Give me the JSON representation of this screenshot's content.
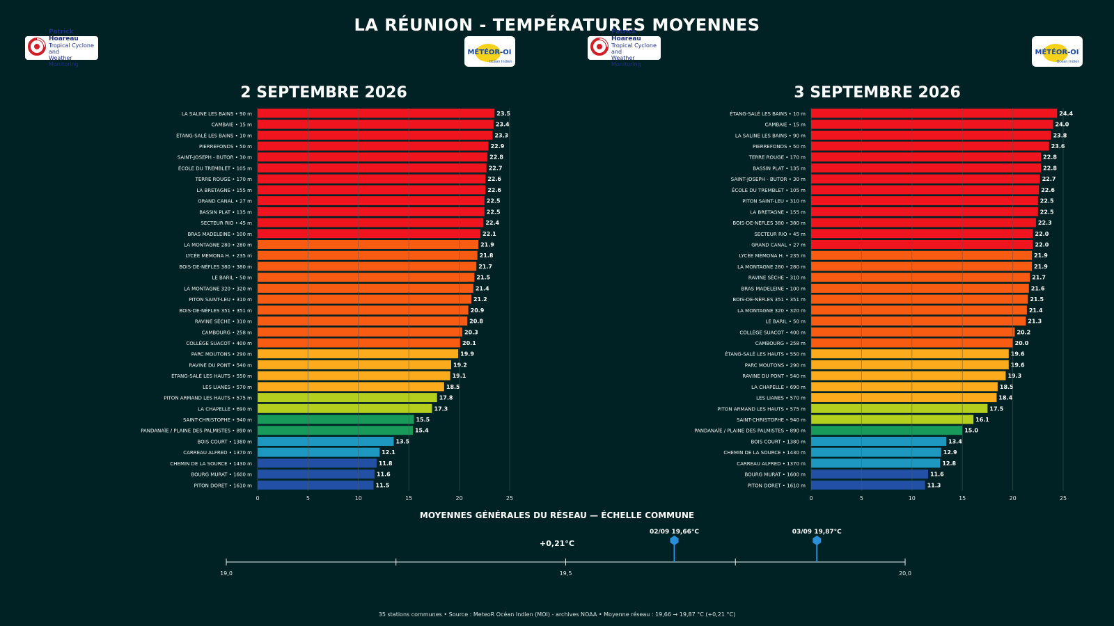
{
  "header": {
    "title": "LA RÉUNION - TEMPÉRATURES MOYENNES",
    "logo_ph_line1": "Patrick Hoareau",
    "logo_ph_line2": "Tropical Cyclone and",
    "logo_ph_line3": "Weather Monitoring",
    "logo_mdi_text": "MÉTÉOR-OI",
    "logo_mdi_sub": "Océan Indien"
  },
  "colors": {
    "background": "#012224",
    "red": "#f0141e",
    "orange": "#f85c12",
    "amber": "#fbab1b",
    "lime": "#b5cf1f",
    "green": "#189a5a",
    "teal": "#1e98c0",
    "blue": "#2250a4",
    "marker": "#2a8fd8"
  },
  "chart_data": [
    {
      "type": "bar",
      "orientation": "horizontal",
      "title": "2 SEPTEMBRE 2026",
      "xlim": [
        0,
        25
      ],
      "xticks": [
        0,
        5,
        10,
        15,
        20,
        25
      ],
      "grid": true,
      "categories": [
        "LA SALINE LES BAINS • 90 m",
        "CAMBAIE • 15 m",
        "ÉTANG-SALÉ LES BAINS • 10 m",
        "PIERREFONDS • 50 m",
        "SAINT-JOSEPH - BUTOR • 30 m",
        "ÉCOLE DU TREMBLET • 105 m",
        "TERRE ROUGE • 170 m",
        "LA BRETAGNE • 155 m",
        "GRAND CANAL • 27 m",
        "BASSIN PLAT • 135 m",
        "SECTEUR RIO • 45 m",
        "BRAS MADELEINE • 100 m",
        "LA MONTAGNE 280 • 280 m",
        "LYCÉE MÉMONA H. • 235 m",
        "BOIS-DE-NÈFLES 380 • 380 m",
        "LE BARIL • 50 m",
        "LA MONTAGNE 320 • 320 m",
        "PITON SAINT-LEU • 310 m",
        "BOIS-DE-NÈFLES 351 • 351 m",
        "RAVINE SÈCHE • 310 m",
        "CAMBOURG • 258 m",
        "COLLÈGE SUACOT • 400 m",
        "PARC MOUTONS • 290 m",
        "RAVINE DU PONT • 540 m",
        "ÉTANG-SALÉ LES HAUTS • 550 m",
        "LES LIANES • 570 m",
        "PITON ARMAND LES HAUTS • 575 m",
        "LA CHAPELLE • 690 m",
        "SAINT-CHRISTOPHE • 940 m",
        "PANDANAÏE / PLAINE DES PALMISTES • 890 m",
        "BOIS COURT • 1380 m",
        "CARREAU ALFRED • 1370 m",
        "CHEMIN DE LA SOURCE • 1430 m",
        "BOURG MURAT • 1600 m",
        "PITON DORET • 1610 m"
      ],
      "values": [
        23.5,
        23.4,
        23.3,
        22.9,
        22.8,
        22.7,
        22.6,
        22.6,
        22.5,
        22.5,
        22.4,
        22.1,
        21.9,
        21.8,
        21.7,
        21.5,
        21.4,
        21.2,
        20.9,
        20.8,
        20.3,
        20.1,
        19.9,
        19.2,
        19.1,
        18.5,
        17.8,
        17.3,
        15.5,
        15.4,
        13.5,
        12.1,
        11.8,
        11.6,
        11.5
      ],
      "value_labels": [
        "23.5",
        "23.4",
        "23.3",
        "22.9",
        "22.8",
        "22.7",
        "22.6",
        "22.6",
        "22.5",
        "22.5",
        "22.4",
        "22.1",
        "21.9",
        "21.8",
        "21.7",
        "21.5",
        "21.4",
        "21.2",
        "20.9",
        "20.8",
        "20.3",
        "20.1",
        "19.9",
        "19.2",
        "19.1",
        "18.5",
        "17.8",
        "17.3",
        "15.5",
        "15.4",
        "13.5",
        "12.1",
        "11.8",
        "11.6",
        "11.5"
      ],
      "bar_colors": [
        "red",
        "red",
        "red",
        "red",
        "red",
        "red",
        "red",
        "red",
        "red",
        "red",
        "red",
        "red",
        "orange",
        "orange",
        "orange",
        "orange",
        "orange",
        "orange",
        "orange",
        "orange",
        "orange",
        "orange",
        "amber",
        "amber",
        "amber",
        "amber",
        "lime",
        "lime",
        "green",
        "green",
        "teal",
        "teal",
        "blue",
        "blue",
        "blue"
      ]
    },
    {
      "type": "bar",
      "orientation": "horizontal",
      "title": "3 SEPTEMBRE 2026",
      "xlim": [
        0,
        25
      ],
      "xticks": [
        0,
        5,
        10,
        15,
        20,
        25
      ],
      "grid": true,
      "categories": [
        "ÉTANG-SALÉ LES BAINS • 10 m",
        "CAMBAIE • 15 m",
        "LA SALINE LES BAINS • 90 m",
        "PIERREFONDS • 50 m",
        "TERRE ROUGE • 170 m",
        "BASSIN PLAT • 135 m",
        "SAINT-JOSEPH - BUTOR • 30 m",
        "ÉCOLE DU TREMBLET • 105 m",
        "PITON SAINT-LEU • 310 m",
        "LA BRETAGNE • 155 m",
        "BOIS-DE-NÈFLES 380 • 380 m",
        "SECTEUR RIO • 45 m",
        "GRAND CANAL • 27 m",
        "LYCÉE MÉMONA H. • 235 m",
        "LA MONTAGNE 280 • 280 m",
        "RAVINE SÈCHE • 310 m",
        "BRAS MADELEINE • 100 m",
        "BOIS-DE-NÈFLES 351 • 351 m",
        "LA MONTAGNE 320 • 320 m",
        "LE BARIL • 50 m",
        "COLLÈGE SUACOT • 400 m",
        "CAMBOURG • 258 m",
        "ÉTANG-SALÉ LES HAUTS • 550 m",
        "PARC MOUTONS • 290 m",
        "RAVINE DU PONT • 540 m",
        "LA CHAPELLE • 690 m",
        "LES LIANES • 570 m",
        "PITON ARMAND LES HAUTS • 575 m",
        "SAINT-CHRISTOPHE • 940 m",
        "PANDANAÏE / PLAINE DES PALMISTES • 890 m",
        "BOIS COURT • 1380 m",
        "CHEMIN DE LA SOURCE • 1430 m",
        "CARREAU ALFRED • 1370 m",
        "BOURG MURAT • 1600 m",
        "PITON DORET • 1610 m"
      ],
      "values": [
        24.4,
        24.0,
        23.8,
        23.6,
        22.8,
        22.8,
        22.7,
        22.6,
        22.5,
        22.5,
        22.3,
        22.0,
        22.0,
        21.9,
        21.9,
        21.7,
        21.6,
        21.5,
        21.4,
        21.3,
        20.2,
        20.0,
        19.6,
        19.6,
        19.3,
        18.5,
        18.4,
        17.5,
        16.1,
        15.0,
        13.4,
        12.9,
        12.8,
        11.6,
        11.3
      ],
      "value_labels": [
        "24.4",
        "24.0",
        "23.8",
        "23.6",
        "22.8",
        "22.8",
        "22.7",
        "22.6",
        "22.5",
        "22.5",
        "22.3",
        "22.0",
        "22.0",
        "21.9",
        "21.9",
        "21.7",
        "21.6",
        "21.5",
        "21.4",
        "21.3",
        "20.2",
        "20.0",
        "19.6",
        "19.6",
        "19.3",
        "18.5",
        "18.4",
        "17.5",
        "16.1",
        "15.0",
        "13.4",
        "12.9",
        "12.8",
        "11.6",
        "11.3"
      ],
      "bar_colors": [
        "red",
        "red",
        "red",
        "red",
        "red",
        "red",
        "red",
        "red",
        "red",
        "red",
        "red",
        "red",
        "red",
        "orange",
        "orange",
        "orange",
        "orange",
        "orange",
        "orange",
        "orange",
        "orange",
        "orange",
        "amber",
        "amber",
        "amber",
        "amber",
        "amber",
        "lime",
        "lime",
        "green",
        "teal",
        "teal",
        "teal",
        "blue",
        "blue"
      ]
    },
    {
      "type": "scatter",
      "title": "MOYENNES GÉNÉRALES DU RÉSEAU — ÉCHELLE COMMUNE",
      "xlim": [
        19.0,
        20.0
      ],
      "xticks": [
        19.0,
        19.25,
        19.5,
        19.75,
        20.0
      ],
      "xtick_labels": [
        "19,0",
        "",
        "19,5",
        "",
        "20,0"
      ],
      "points": [
        {
          "x": 19.66,
          "label": "02/09  19,66°C"
        },
        {
          "x": 19.87,
          "label": "03/09  19,87°C"
        }
      ],
      "delta_label": "+0,21°C"
    }
  ],
  "footer": {
    "text": "35 stations communes • Source : MeteoR Océan Indien (MOI) - archives NOAA • Moyenne réseau : 19,66 → 19,87 °C (+0,21 °C)"
  }
}
